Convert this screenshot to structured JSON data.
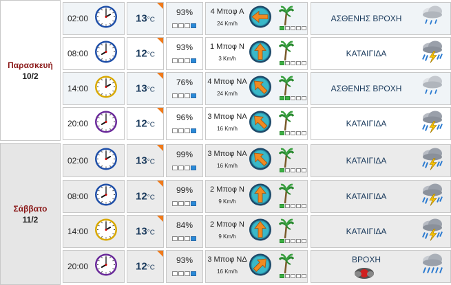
{
  "days": [
    {
      "name": "Παρασκευή",
      "date": "10/2"
    },
    {
      "name": "Σάββατο",
      "date": "11/2"
    }
  ],
  "temp_unit": "°C",
  "rows": [
    {
      "time": "02:00",
      "clock": "blue",
      "temp": "13",
      "hum": "93%",
      "hum_level": 1,
      "wind": "4 Μποφ Α",
      "kmh": "24 Km/h",
      "wind_level": 1,
      "dir_deg": 270,
      "cond": "ΑΣΘΕΝΗΣ ΒΡΟΧΗ",
      "cond_icon": "light-rain-icon"
    },
    {
      "time": "08:00",
      "clock": "blue",
      "temp": "12",
      "hum": "93%",
      "hum_level": 1,
      "wind": "1 Μποφ Ν",
      "kmh": "3 Km/h",
      "wind_level": 1,
      "dir_deg": 0,
      "cond": "ΚΑΤΑΙΓΙΔΑ",
      "cond_icon": "thunderstorm-icon"
    },
    {
      "time": "14:00",
      "clock": "yellow",
      "temp": "13",
      "hum": "76%",
      "hum_level": 1,
      "wind": "4 Μποφ ΝΑ",
      "kmh": "24 Km/h",
      "wind_level": 2,
      "dir_deg": 315,
      "cond": "ΑΣΘΕΝΗΣ ΒΡΟΧΗ",
      "cond_icon": "light-rain-icon"
    },
    {
      "time": "20:00",
      "clock": "purple",
      "temp": "12",
      "hum": "96%",
      "hum_level": 1,
      "wind": "3 Μποφ ΝΑ",
      "kmh": "16 Km/h",
      "wind_level": 1,
      "dir_deg": 315,
      "cond": "ΚΑΤΑΙΓΙΔΑ",
      "cond_icon": "thunderstorm-icon"
    },
    {
      "time": "02:00",
      "clock": "blue",
      "temp": "13",
      "hum": "99%",
      "hum_level": 1,
      "wind": "3 Μποφ ΝΑ",
      "kmh": "16 Km/h",
      "wind_level": 1,
      "dir_deg": 315,
      "cond": "ΚΑΤΑΙΓΙΔΑ",
      "cond_icon": "thunderstorm-icon"
    },
    {
      "time": "08:00",
      "clock": "blue",
      "temp": "12",
      "hum": "99%",
      "hum_level": 1,
      "wind": "2 Μποφ Ν",
      "kmh": "9 Km/h",
      "wind_level": 1,
      "dir_deg": 0,
      "cond": "ΚΑΤΑΙΓΙΔΑ",
      "cond_icon": "thunderstorm-icon"
    },
    {
      "time": "14:00",
      "clock": "yellow",
      "temp": "13",
      "hum": "84%",
      "hum_level": 1,
      "wind": "2 Μποφ Ν",
      "kmh": "9 Km/h",
      "wind_level": 1,
      "dir_deg": 0,
      "cond": "ΚΑΤΑΙΓΙΔΑ",
      "cond_icon": "thunderstorm-icon"
    },
    {
      "time": "20:00",
      "clock": "purple",
      "temp": "12",
      "hum": "93%",
      "hum_level": 1,
      "wind": "3 Μποφ ΝΔ",
      "kmh": "16 Km/h",
      "wind_level": 1,
      "dir_deg": 45,
      "cond": "ΒΡΟΧΗ",
      "cond_icon": "rain-icon"
    }
  ],
  "colors": {
    "temp": "#1a3a5c",
    "day_name": "#8b1a1a",
    "accent": "#f07a1a",
    "hum_bar": "#2a8ad8",
    "wind_bar": "#3cb043"
  }
}
